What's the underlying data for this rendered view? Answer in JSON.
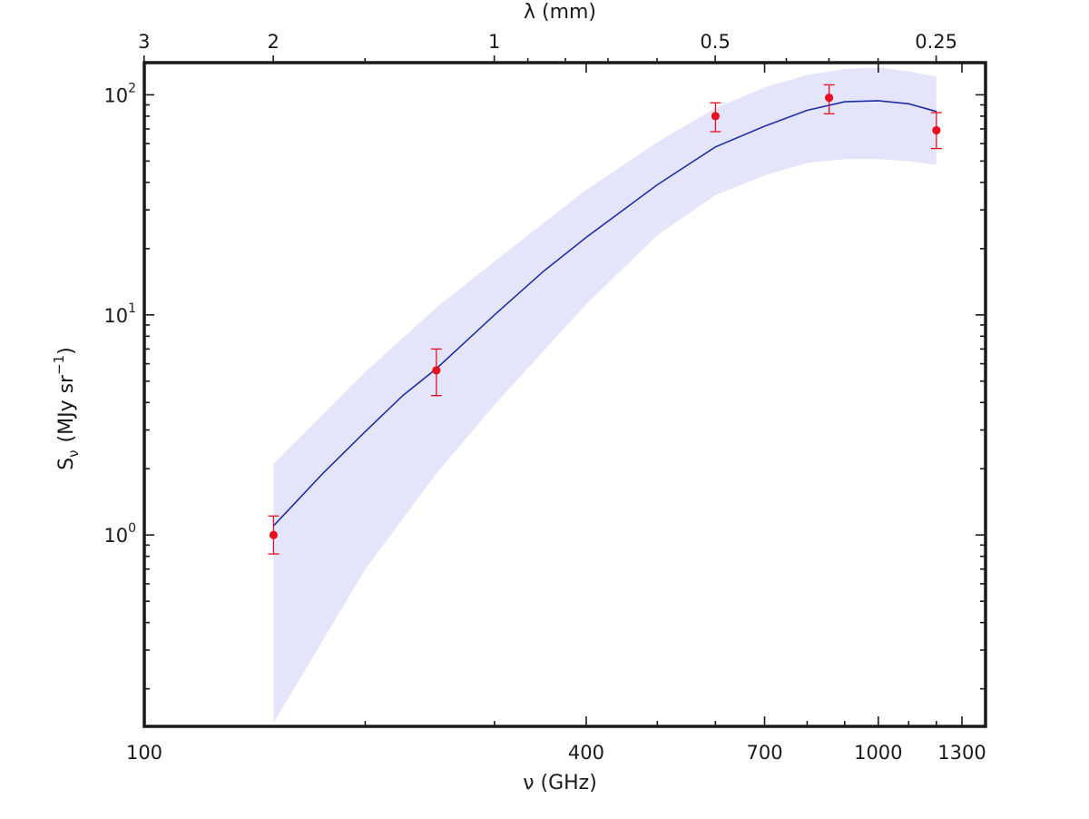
{
  "chart_data": {
    "type": "scatter",
    "title": "",
    "xlabel": "ν (GHz)",
    "ylabel": {
      "main": "S",
      "sub": "ν",
      "units_prefix": "(MJy sr",
      "units_sup": "−1",
      "units_suffix": ")"
    },
    "top_axis_label": "λ  (mm)",
    "x_scale": "log",
    "y_scale": "log",
    "xlim": [
      100,
      1400
    ],
    "ylim": [
      0.135,
      140
    ],
    "grid": false,
    "legend": "none",
    "x_ticks": [
      {
        "value": 100,
        "label": "100"
      },
      {
        "value": 400,
        "label": "400"
      },
      {
        "value": 700,
        "label": "700"
      },
      {
        "value": 1000,
        "label": "1000"
      },
      {
        "value": 1300,
        "label": "1300"
      }
    ],
    "x_minor_ticks": [
      200,
      300,
      500,
      600,
      800,
      900,
      1100,
      1200
    ],
    "top_ticks": [
      {
        "value_mm": 3,
        "label": "3"
      },
      {
        "value_mm": 2,
        "label": "2"
      },
      {
        "value_mm": 1,
        "label": "1"
      },
      {
        "value_mm": 0.5,
        "label": "0.5"
      },
      {
        "value_mm": 0.25,
        "label": "0.25"
      }
    ],
    "top_minor_ticks_mm": [
      1.5,
      0.9,
      0.8,
      0.7,
      0.6,
      0.4,
      0.35,
      0.3
    ],
    "y_ticks": [
      {
        "value": 1,
        "base": "10",
        "exp": "0"
      },
      {
        "value": 10,
        "base": "10",
        "exp": "1"
      },
      {
        "value": 100,
        "base": "10",
        "exp": "2"
      }
    ],
    "y_minor_ticks": [
      0.2,
      0.3,
      0.4,
      0.5,
      0.6,
      0.7,
      0.8,
      0.9,
      2,
      3,
      4,
      5,
      6,
      7,
      8,
      9,
      20,
      30,
      40,
      50,
      60,
      70,
      80,
      90
    ],
    "series": [
      {
        "kind": "points",
        "color": "#e8101e",
        "points": [
          {
            "x": 150,
            "y": 1.0,
            "err_lo": 0.82,
            "err_hi": 1.22
          },
          {
            "x": 250,
            "y": 5.6,
            "err_lo": 4.3,
            "err_hi": 7.0
          },
          {
            "x": 600,
            "y": 80,
            "err_lo": 68,
            "err_hi": 92
          },
          {
            "x": 857,
            "y": 97,
            "err_lo": 82,
            "err_hi": 111
          },
          {
            "x": 1200,
            "y": 69,
            "err_lo": 57,
            "err_hi": 83
          }
        ]
      },
      {
        "kind": "model-line",
        "color": "#1f2ea8",
        "x": [
          150,
          175,
          200,
          225,
          250,
          300,
          350,
          400,
          500,
          600,
          700,
          800,
          900,
          1000,
          1100,
          1200
        ],
        "y": [
          1.1,
          1.9,
          2.95,
          4.3,
          5.7,
          10.0,
          15.8,
          22.5,
          39,
          58,
          72,
          85,
          93,
          94,
          91,
          84
        ]
      },
      {
        "kind": "band",
        "color": "#e4e5fb",
        "x": [
          150,
          200,
          250,
          300,
          400,
          500,
          600,
          700,
          800,
          900,
          1000,
          1100,
          1200
        ],
        "y_lo": [
          0.14,
          0.7,
          1.9,
          3.9,
          11.2,
          23,
          35,
          43,
          49,
          51,
          51,
          50,
          48
        ],
        "y_hi": [
          2.1,
          5.5,
          10.8,
          17.5,
          37,
          61,
          87,
          108,
          123,
          131,
          133,
          128,
          121
        ]
      }
    ]
  }
}
